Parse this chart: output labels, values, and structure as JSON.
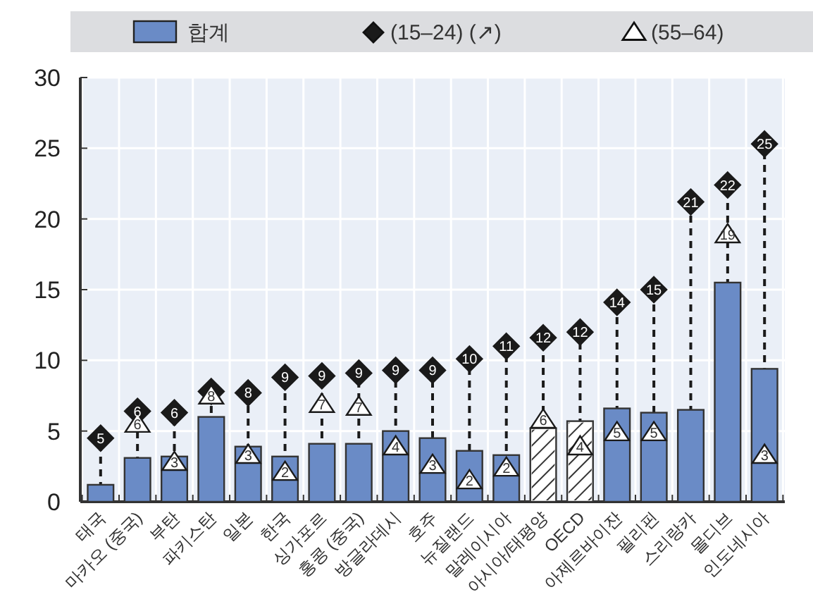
{
  "chart_data": {
    "type": "bar",
    "categories": [
      "태국",
      "마카오 (중국)",
      "부탄",
      "파키스탄",
      "일본",
      "한국",
      "싱가포르",
      "홍콩 (중국)",
      "방글라데시",
      "호주",
      "뉴질랜드",
      "말레이시아",
      "아시아/태평양",
      "OECD",
      "아제르바이잔",
      "필리핀",
      "스리랑카",
      "몰디브",
      "인도네시아"
    ],
    "series": [
      {
        "name": "합계",
        "color": "#6a8bc6",
        "colors": [
          "#6a8bc6",
          "#6a8bc6",
          "#6a8bc6",
          "#6a8bc6",
          "#6a8bc6",
          "#6a8bc6",
          "#6a8bc6",
          "#6a8bc6",
          "#6a8bc6",
          "#6a8bc6",
          "#6a8bc6",
          "#6a8bc6",
          "#ffffff",
          "#ffffff",
          "#6a8bc6",
          "#6a8bc6",
          "#6a8bc6",
          "#6a8bc6",
          "#6a8bc6"
        ],
        "values": [
          1.2,
          3.1,
          3.2,
          6.0,
          3.9,
          3.2,
          4.1,
          4.1,
          5.0,
          4.5,
          3.6,
          3.3,
          5.2,
          5.7,
          6.6,
          6.3,
          6.5,
          15.5,
          9.4
        ]
      },
      {
        "name": "(15–24) (↗)",
        "type": "scatter",
        "marker": "diamond",
        "color": "#1a1a1a",
        "values": [
          4.5,
          6.4,
          6.3,
          7.8,
          7.7,
          8.8,
          8.9,
          9.1,
          9.3,
          9.3,
          10.1,
          11.0,
          11.6,
          12.0,
          14.1,
          15.0,
          21.2,
          22.4,
          25.3
        ],
        "value_labels": [
          "5",
          "6",
          "6",
          null,
          "8",
          "9",
          "9",
          "9",
          "9",
          "9",
          "10",
          "11",
          "12",
          "12",
          "14",
          "15",
          "21",
          "22",
          "25"
        ]
      },
      {
        "name": "(55–64)",
        "type": "scatter",
        "marker": "triangle",
        "color": "#ffffff",
        "values": [
          null,
          5.5,
          2.8,
          7.5,
          3.3,
          2.1,
          6.9,
          6.7,
          3.9,
          2.6,
          1.5,
          2.4,
          5.8,
          3.9,
          4.9,
          4.9,
          null,
          18.9,
          3.3
        ],
        "value_labels": [
          null,
          "6",
          "3",
          "8",
          "3",
          "2",
          "7",
          "7",
          "4",
          "3",
          "2",
          "2",
          "6",
          "4",
          "5",
          "5",
          null,
          "19",
          "3"
        ]
      }
    ],
    "ylim": [
      0,
      30
    ],
    "yticks": [
      0,
      5,
      10,
      15,
      20,
      25,
      30
    ],
    "grid": true,
    "legend": "top"
  }
}
